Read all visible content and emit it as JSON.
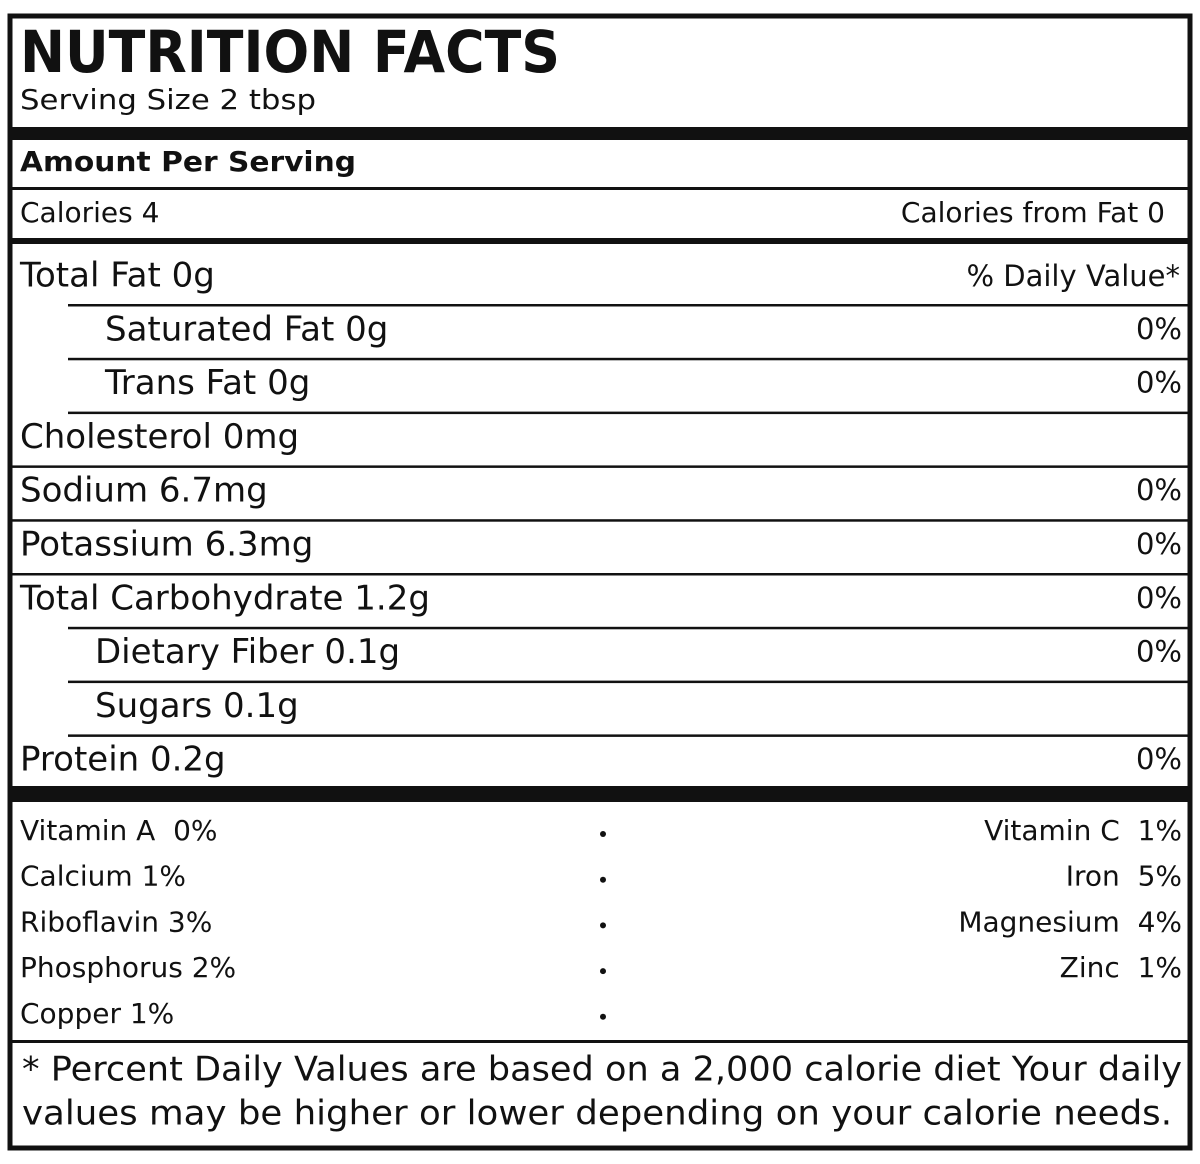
{
  "header": {
    "title": "NUTRITION FACTS",
    "serving_size": "Serving Size 2 tbsp"
  },
  "amount_per_serving": "Amount Per Serving",
  "calories": "Calories 4",
  "calories_from_fat": "Calories from Fat 0",
  "daily_value_header": "% Daily Value*",
  "nutrients": [
    {
      "label": "Total Fat 0g",
      "indent": false
    },
    {
      "label": "Saturated Fat 0g",
      "percent": "0%",
      "indent": true
    },
    {
      "label": "Trans Fat 0g",
      "percent": "0%",
      "indent": true
    },
    {
      "label": "Cholesterol 0mg",
      "indent": false
    },
    {
      "label": "Sodium 6.7mg",
      "percent": "0%",
      "indent": false
    },
    {
      "label": "Potassium 6.3mg",
      "percent": "0%",
      "indent": false
    },
    {
      "label": "Total Carbohydrate 1.2g",
      "percent": "0%",
      "indent": false
    },
    {
      "label": "Dietary Fiber 0.1g",
      "percent": "0%",
      "indent": true
    },
    {
      "label": "Sugars 0.1g",
      "indent": true
    },
    {
      "label": "Protein 0.2g",
      "percent": "0%",
      "indent": false
    }
  ],
  "vitamins": [
    {
      "left": "Vitamin A  0%",
      "right": "Vitamin C  1%"
    },
    {
      "left": "Calcium 1%",
      "right": "Iron  5%"
    },
    {
      "left": "Riboflavin 3%",
      "right": "Magnesium  4%"
    },
    {
      "left": "Phosphorus 2%",
      "right": "Zinc  1%"
    },
    {
      "left": "Copper 1%"
    }
  ],
  "footnote": [
    "* Percent Daily Values are based on a 2,000 calorie diet Your daily",
    "values may be higher or lower depending on your calorie needs."
  ]
}
